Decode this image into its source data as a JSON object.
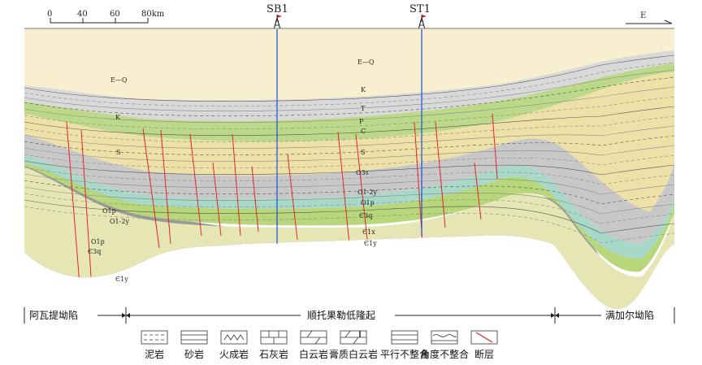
{
  "scale_bar": {
    "ticks": [
      "0",
      "40",
      "60",
      "80km"
    ]
  },
  "direction": "E",
  "wells": [
    {
      "name": "SB1"
    },
    {
      "name": "ST1"
    }
  ],
  "strata_labels": {
    "eq_left": "E—Q",
    "eq_center": "E—Q",
    "k_left": "K",
    "k_mid": "K",
    "t": "T",
    "p": "P",
    "c": "C",
    "s": "S",
    "s_left": "S",
    "o3s": "O3s",
    "o12y": "O1-2y",
    "o1p_left": "O1p",
    "o1p_mid": "O1p",
    "o12y_left": "O1-2y",
    "e3q": "Є3q",
    "e3q_left": "Є3q",
    "e1x": "Є1x",
    "e1y_mid": "Є1y",
    "e1y_left": "Є1y",
    "o1p_small": "O1p"
  },
  "regions": [
    {
      "name": "阿瓦提坳陷"
    },
    {
      "name": "顺托果勒低隆起"
    },
    {
      "name": "满加尔坳陷"
    }
  ],
  "legend": [
    {
      "label": "泥岩",
      "pattern": "dashed-lines"
    },
    {
      "label": "砂岩",
      "pattern": "solid-lines"
    },
    {
      "label": "火成岩",
      "pattern": "carets"
    },
    {
      "label": "石灰岩",
      "pattern": "brick"
    },
    {
      "label": "白云岩",
      "pattern": "diagonal-brick"
    },
    {
      "label": "膏质白云岩",
      "pattern": "dolomite-gypsum"
    },
    {
      "label": "平行不整合",
      "pattern": "parallel-unconformity"
    },
    {
      "label": "角度不整合",
      "pattern": "angular-unconformity"
    },
    {
      "label": "断层",
      "pattern": "fault-red"
    }
  ],
  "colors": {
    "eq_fill": "#f7efcf",
    "cretaceous": "#d9d9d9",
    "triassic_green": "#bcd98a",
    "permian_yellow": "#ede1a8",
    "carboniferous": "#d7d7d7",
    "silurian_gray": "#c8c8c8",
    "ordovician_teal": "#a8d8c8",
    "ordovician_green": "#b8d67a",
    "cambrian_cream": "#e6e6b5",
    "basement_gray": "#9a9a9a",
    "fault_red": "#e2232a",
    "well_blue": "#1a4fd6"
  }
}
